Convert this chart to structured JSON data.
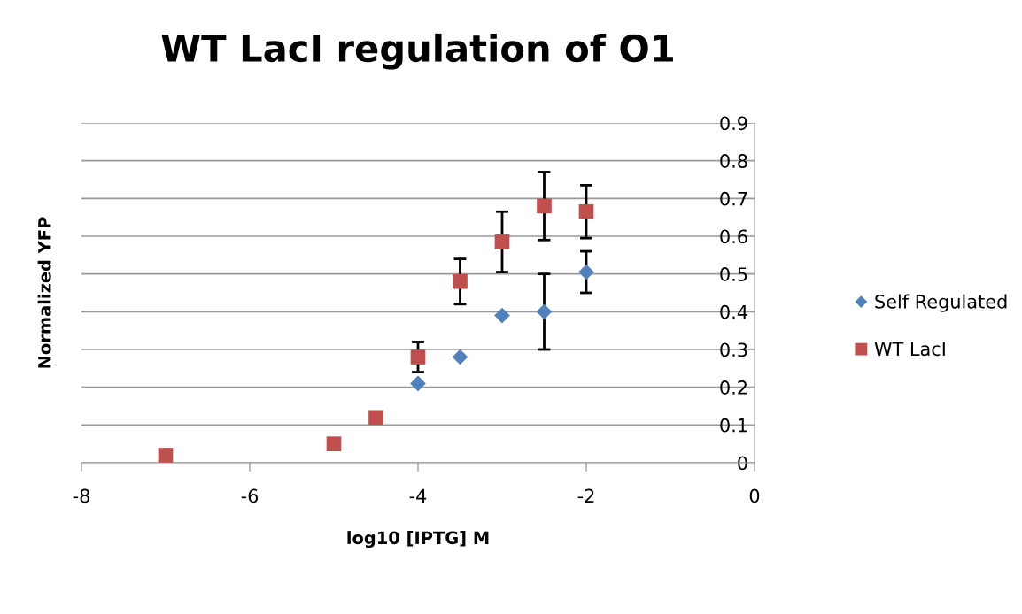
{
  "chart_data": {
    "type": "scatter",
    "title": "WT LacI regulation of O1",
    "xlabel": "log10 [IPTG] M",
    "ylabel": "Normalized YFP",
    "xlim": [
      -8,
      0
    ],
    "xticks": [
      -8,
      -6,
      -4,
      -2,
      0
    ],
    "ylim": [
      0,
      0.9
    ],
    "yticks": [
      0,
      0.1,
      0.2,
      0.3,
      0.4,
      0.5,
      0.6,
      0.7,
      0.8,
      0.9
    ],
    "grid": "y",
    "legend": "right",
    "series": [
      {
        "name": "Self Regulated",
        "color": "#4f81bd",
        "marker": "diamond",
        "x": [
          -4,
          -3.5,
          -3,
          -2.5,
          -2
        ],
        "values": [
          0.21,
          0.28,
          0.39,
          0.4,
          0.505
        ],
        "errors": [
          null,
          null,
          null,
          0.1,
          0.055
        ]
      },
      {
        "name": "WT LacI",
        "color": "#c0504d",
        "marker": "square",
        "x": [
          -7,
          -5,
          -4.5,
          -4,
          -3.5,
          -3,
          -2.5,
          -2
        ],
        "values": [
          0.02,
          0.05,
          0.12,
          0.28,
          0.48,
          0.585,
          0.68,
          0.665
        ],
        "errors": [
          null,
          null,
          null,
          0.04,
          0.06,
          0.08,
          0.09,
          0.07
        ]
      }
    ]
  }
}
